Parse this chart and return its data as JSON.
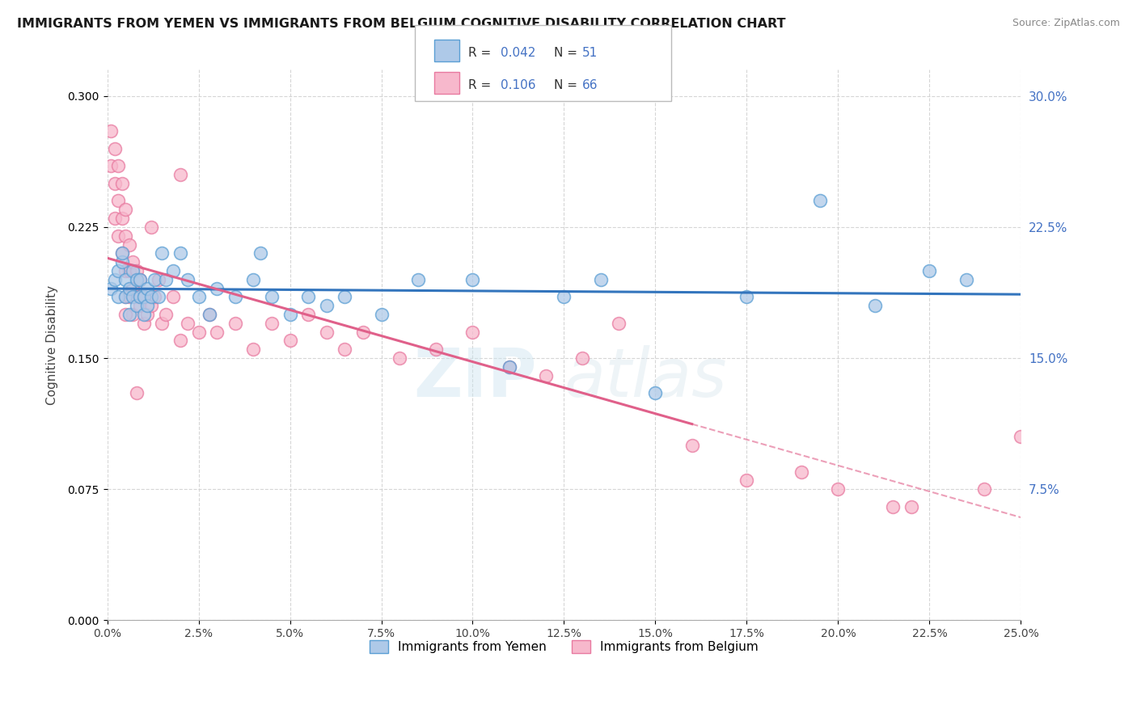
{
  "title": "IMMIGRANTS FROM YEMEN VS IMMIGRANTS FROM BELGIUM COGNITIVE DISABILITY CORRELATION CHART",
  "source": "Source: ZipAtlas.com",
  "ylabel": "Cognitive Disability",
  "right_yticks": [
    0.075,
    0.15,
    0.225,
    0.3
  ],
  "right_yticklabels": [
    "7.5%",
    "15.0%",
    "22.5%",
    "30.0%"
  ],
  "xlim": [
    0.0,
    0.25
  ],
  "ylim": [
    0.0,
    0.315
  ],
  "legend_r_yemen": "0.042",
  "legend_n_yemen": "51",
  "legend_r_belgium": "0.106",
  "legend_n_belgium": "66",
  "legend_label_yemen": "Immigrants from Yemen",
  "legend_label_belgium": "Immigrants from Belgium",
  "color_yemen_fill": "#aec9e8",
  "color_yemen_edge": "#5b9fd4",
  "color_belgium_fill": "#f7b8cc",
  "color_belgium_edge": "#e87aa0",
  "color_yemen_line": "#3375bd",
  "color_belgium_line": "#e0608a",
  "watermark_zip": "ZIP",
  "watermark_atlas": "atlas",
  "background_color": "#ffffff",
  "yemen_x": [
    0.001,
    0.002,
    0.003,
    0.003,
    0.004,
    0.004,
    0.005,
    0.005,
    0.006,
    0.006,
    0.007,
    0.007,
    0.008,
    0.008,
    0.009,
    0.009,
    0.01,
    0.01,
    0.011,
    0.011,
    0.012,
    0.013,
    0.014,
    0.015,
    0.016,
    0.018,
    0.02,
    0.022,
    0.025,
    0.028,
    0.03,
    0.035,
    0.04,
    0.042,
    0.045,
    0.05,
    0.055,
    0.06,
    0.065,
    0.075,
    0.085,
    0.1,
    0.11,
    0.125,
    0.135,
    0.15,
    0.175,
    0.195,
    0.21,
    0.225,
    0.235
  ],
  "yemen_y": [
    0.19,
    0.195,
    0.2,
    0.185,
    0.205,
    0.21,
    0.195,
    0.185,
    0.175,
    0.19,
    0.185,
    0.2,
    0.195,
    0.18,
    0.185,
    0.195,
    0.185,
    0.175,
    0.19,
    0.18,
    0.185,
    0.195,
    0.185,
    0.21,
    0.195,
    0.2,
    0.21,
    0.195,
    0.185,
    0.175,
    0.19,
    0.185,
    0.195,
    0.21,
    0.185,
    0.175,
    0.185,
    0.18,
    0.185,
    0.175,
    0.195,
    0.195,
    0.145,
    0.185,
    0.195,
    0.13,
    0.185,
    0.24,
    0.18,
    0.2,
    0.195
  ],
  "belgium_x": [
    0.001,
    0.001,
    0.002,
    0.002,
    0.002,
    0.003,
    0.003,
    0.003,
    0.004,
    0.004,
    0.004,
    0.005,
    0.005,
    0.005,
    0.005,
    0.006,
    0.006,
    0.006,
    0.007,
    0.007,
    0.007,
    0.008,
    0.008,
    0.009,
    0.009,
    0.01,
    0.01,
    0.011,
    0.012,
    0.013,
    0.014,
    0.015,
    0.016,
    0.018,
    0.02,
    0.022,
    0.025,
    0.028,
    0.03,
    0.035,
    0.04,
    0.045,
    0.05,
    0.055,
    0.06,
    0.065,
    0.07,
    0.08,
    0.09,
    0.1,
    0.11,
    0.12,
    0.13,
    0.14,
    0.16,
    0.175,
    0.19,
    0.2,
    0.215,
    0.22,
    0.24,
    0.25,
    0.005,
    0.008,
    0.012,
    0.02
  ],
  "belgium_y": [
    0.28,
    0.26,
    0.27,
    0.25,
    0.23,
    0.24,
    0.22,
    0.26,
    0.23,
    0.21,
    0.25,
    0.2,
    0.22,
    0.235,
    0.185,
    0.2,
    0.215,
    0.185,
    0.19,
    0.205,
    0.175,
    0.185,
    0.2,
    0.18,
    0.195,
    0.17,
    0.185,
    0.175,
    0.18,
    0.185,
    0.195,
    0.17,
    0.175,
    0.185,
    0.16,
    0.17,
    0.165,
    0.175,
    0.165,
    0.17,
    0.155,
    0.17,
    0.16,
    0.175,
    0.165,
    0.155,
    0.165,
    0.15,
    0.155,
    0.165,
    0.145,
    0.14,
    0.15,
    0.17,
    0.1,
    0.08,
    0.085,
    0.075,
    0.065,
    0.065,
    0.075,
    0.105,
    0.175,
    0.13,
    0.225,
    0.255
  ]
}
